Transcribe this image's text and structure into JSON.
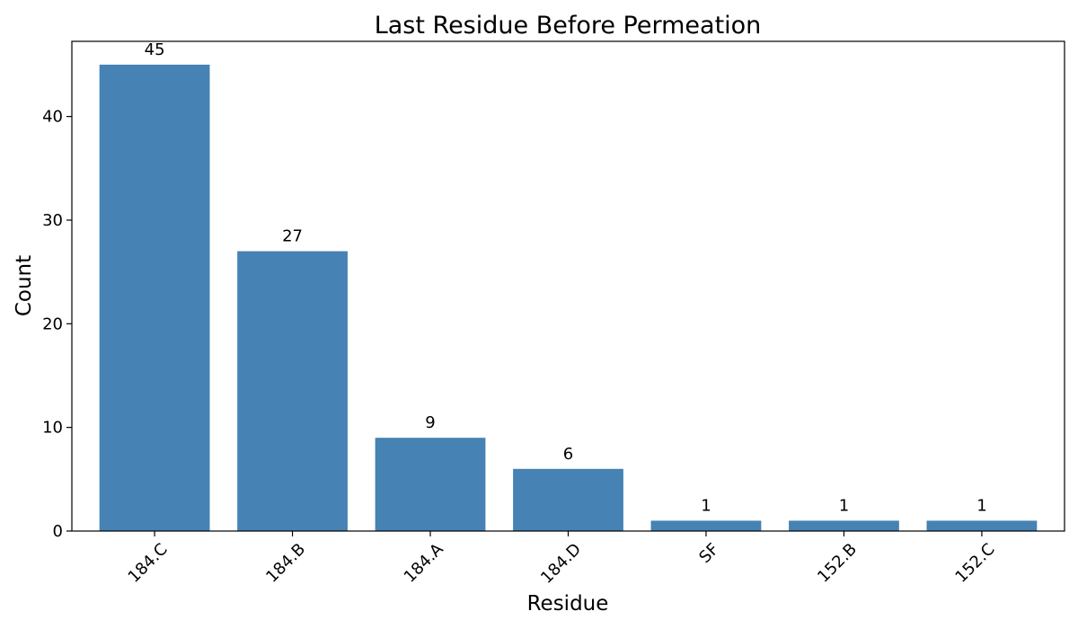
{
  "chart_data": {
    "type": "bar",
    "title": "Last Residue Before Permeation",
    "xlabel": "Residue",
    "ylabel": "Count",
    "categories": [
      "184.C",
      "184.B",
      "184.A",
      "184.D",
      "SF",
      "152.B",
      "152.C"
    ],
    "values": [
      45,
      27,
      9,
      6,
      1,
      1,
      1
    ],
    "data_labels": [
      "45",
      "27",
      "9",
      "6",
      "1",
      "1",
      "1"
    ],
    "ylim": [
      0,
      47.25
    ],
    "yticks": [
      0,
      10,
      20,
      30,
      40
    ],
    "ytick_labels": [
      "0",
      "10",
      "20",
      "30",
      "40"
    ],
    "bar_color": "#4682b4",
    "grid": false,
    "legend": "none",
    "xtick_rotation": "45 degrees"
  }
}
